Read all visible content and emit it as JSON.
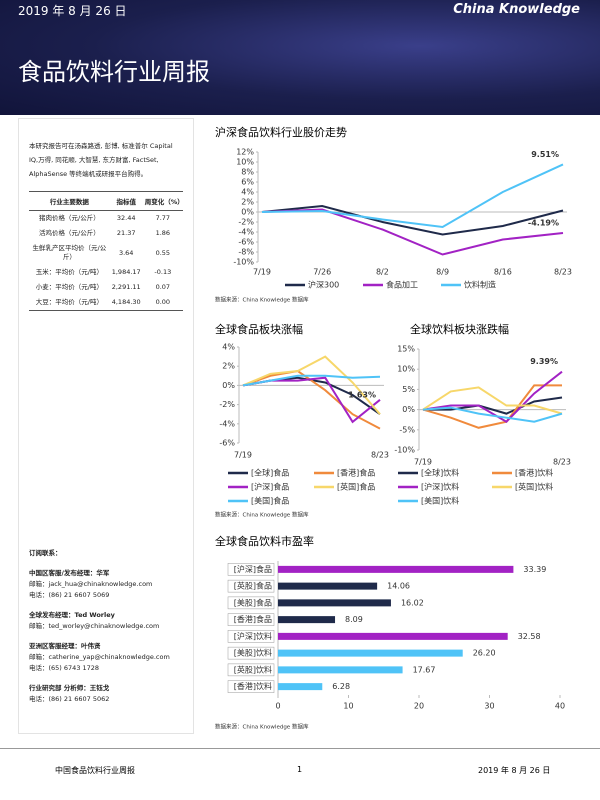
{
  "header": {
    "date": "2019 年 8 月 26 日",
    "logo": "China Knowledge",
    "title": "食品饮料行业周报"
  },
  "sidebar": {
    "intro": "本研究报告可在汤森路透, 彭博, 标准普尔 Capital IQ,万得, 同花顺, 大智慧, 东方财富, FactSet, AlphaSense 等终端机或研报平台购得。",
    "table": {
      "header": [
        "行业主要数据",
        "指标值",
        "周变化（%）"
      ],
      "rows": [
        [
          "猪肉价格（元/公斤）",
          "32.44",
          "7.77"
        ],
        [
          "活鸡价格（元/公斤）",
          "21.37",
          "1.86"
        ],
        [
          "生鲜乳产区平均价（元/公斤）",
          "3.64",
          "0.55"
        ],
        [
          "玉米：平均价（元/吨）",
          "1,984.17",
          "-0.13"
        ],
        [
          "小麦：平均价（元/吨）",
          "2,291.11",
          "0.07"
        ],
        [
          "大豆：平均价（元/吨）",
          "4,184.30",
          "0.00"
        ]
      ]
    },
    "contacts": [
      {
        "heading": "订阅联系：",
        "lines": []
      },
      {
        "heading": "中国区客服/发布经理：华军",
        "lines": [
          "邮箱：jack_hua@chinaknowledge.com",
          "电话：(86) 21 6607 5069"
        ]
      },
      {
        "heading": "全球发布经理：Ted Worley",
        "lines": [
          "邮箱：ted_worley@chinaknowledge.com"
        ]
      },
      {
        "heading": "亚洲区客服经理：叶伟贤",
        "lines": [
          "邮箱：catherine_yap@chinaknowledge.com",
          "电话：(65) 6743 1728"
        ]
      },
      {
        "heading": "行业研究部 分析师：王钰戈",
        "lines": [
          "电话：(86) 21 6607 5062"
        ]
      }
    ]
  },
  "chart_data": [
    {
      "type": "line",
      "title": "沪深食品饮料行业股价走势",
      "source": "数据来源：China Knowledge 数据库",
      "categories": [
        "7/19",
        "7/26",
        "8/2",
        "8/9",
        "8/16",
        "8/23"
      ],
      "ylim": [
        -10,
        12
      ],
      "yticks": [
        {
          "value": 12,
          "label": "12%"
        },
        {
          "value": 10,
          "label": "10%"
        },
        {
          "value": 8,
          "label": "8%"
        },
        {
          "value": 6,
          "label": "6%"
        },
        {
          "value": 4,
          "label": "4%"
        },
        {
          "value": 2,
          "label": "2%"
        },
        {
          "value": 0,
          "label": "0%"
        },
        {
          "value": -2,
          "label": "-2%"
        },
        {
          "value": -4,
          "label": "-4%"
        },
        {
          "value": -6,
          "label": "-6%"
        },
        {
          "value": -8,
          "label": "-8%"
        },
        {
          "value": -10,
          "label": "-10%"
        }
      ],
      "series": [
        {
          "name": "沪深300",
          "color": "#1f2a4a",
          "values": [
            0,
            1.2,
            -2,
            -4.5,
            -2.8,
            0.3
          ]
        },
        {
          "name": "食品加工",
          "color": "#a222c4",
          "values": [
            0,
            0.5,
            -3.5,
            -8.5,
            -5.5,
            -4.19
          ],
          "value_labels": [
            null,
            null,
            null,
            null,
            null,
            "-4.19%"
          ]
        },
        {
          "name": "饮料制造",
          "color": "#4fc3f7",
          "values": [
            0,
            0.2,
            -1.5,
            -3,
            4,
            9.51
          ],
          "value_labels": [
            null,
            null,
            null,
            null,
            null,
            "9.51%"
          ]
        }
      ]
    },
    {
      "type": "line",
      "title": "全球食品板块涨幅",
      "annotation": "1.63%",
      "categories": [
        "7/19",
        null,
        null,
        null,
        null,
        "8/23"
      ],
      "ylim": [
        -6,
        4
      ],
      "yticks": [
        {
          "value": 4,
          "label": "4%"
        },
        {
          "value": 2,
          "label": "2%"
        },
        {
          "value": 0,
          "label": "0%"
        },
        {
          "value": -2,
          "label": "-2%"
        },
        {
          "value": -4,
          "label": "-4%"
        },
        {
          "value": -6,
          "label": "-6%"
        }
      ],
      "series": [
        {
          "name": "[全球]食品",
          "color": "#1f2a4a",
          "values": [
            0,
            0.5,
            0.8,
            0.3,
            -1,
            -3
          ]
        },
        {
          "name": "[香港]食品",
          "color": "#f08a3c",
          "values": [
            0,
            1,
            1.5,
            -0.5,
            -3,
            -4.5
          ]
        },
        {
          "name": "[沪深]食品",
          "color": "#a222c4",
          "values": [
            0,
            0.5,
            0.5,
            0.8,
            -3.8,
            -1.5
          ]
        },
        {
          "name": "[英国]食品",
          "color": "#f7d76a",
          "values": [
            0,
            1.2,
            1.5,
            3,
            0.3,
            -3
          ]
        },
        {
          "name": "[美国]食品",
          "color": "#4fc3f7",
          "values": [
            0,
            0.5,
            1,
            1,
            0.8,
            0.9
          ]
        }
      ]
    },
    {
      "type": "line",
      "title": "全球饮料板块涨跌幅",
      "categories": [
        "7/19",
        null,
        null,
        null,
        null,
        "8/23"
      ],
      "ylim": [
        -10,
        15
      ],
      "yticks": [
        {
          "value": 15,
          "label": "15%"
        },
        {
          "value": 10,
          "label": "10%"
        },
        {
          "value": 5,
          "label": "5%"
        },
        {
          "value": 0,
          "label": "0%"
        },
        {
          "value": -5,
          "label": "-5%"
        },
        {
          "value": -10,
          "label": "-10%"
        }
      ],
      "series": [
        {
          "name": "[全球]饮料",
          "color": "#1f2a4a",
          "values": [
            0,
            0,
            1,
            -1,
            2,
            3
          ]
        },
        {
          "name": "[香港]饮料",
          "color": "#f08a3c",
          "values": [
            0,
            -2,
            -4.5,
            -3,
            6,
            6
          ]
        },
        {
          "name": "[沪深]饮料",
          "color": "#a222c4",
          "values": [
            0,
            1,
            1,
            -3,
            4,
            9.39
          ],
          "value_labels": [
            null,
            null,
            null,
            null,
            null,
            "9.39%"
          ]
        },
        {
          "name": "[英国]饮料",
          "color": "#f7d76a",
          "values": [
            0,
            4.5,
            5.5,
            1,
            1,
            -1
          ]
        },
        {
          "name": "[美国]饮料",
          "color": "#4fc3f7",
          "values": [
            0,
            0.5,
            -1,
            -2,
            -3,
            -1
          ]
        }
      ]
    },
    {
      "type": "hbar",
      "title": "全球食品饮料市盈率",
      "source": "数据来源：China Knowledge 数据库",
      "categories": [
        "[沪深]食品",
        "[英股]食品",
        "[美股]食品",
        "[香港]食品",
        "[沪深]饮料",
        "[美股]饮料",
        "[英股]饮料",
        "[香港]饮料"
      ],
      "values": [
        33.39,
        14.06,
        16.02,
        8.09,
        32.58,
        26.2,
        17.67,
        6.28
      ],
      "value_labels": [
        "33.39",
        "14.06",
        "16.02",
        "8.09",
        "32.58",
        "26.20",
        "17.67",
        "6.28"
      ],
      "colors": [
        "#a222c4",
        "#1f2a4a",
        "#1f2a4a",
        "#1f2a4a",
        "#a222c4",
        "#4fc3f7",
        "#4fc3f7",
        "#4fc3f7"
      ],
      "xlim": [
        0,
        40
      ],
      "xticks": [
        0,
        10,
        20,
        30,
        40
      ]
    }
  ],
  "source2": "数据来源：China Knowledge 数据库",
  "footer": {
    "left": "中国食品饮料行业周报",
    "page": "1",
    "date": "2019 年 8 月 26 日"
  }
}
